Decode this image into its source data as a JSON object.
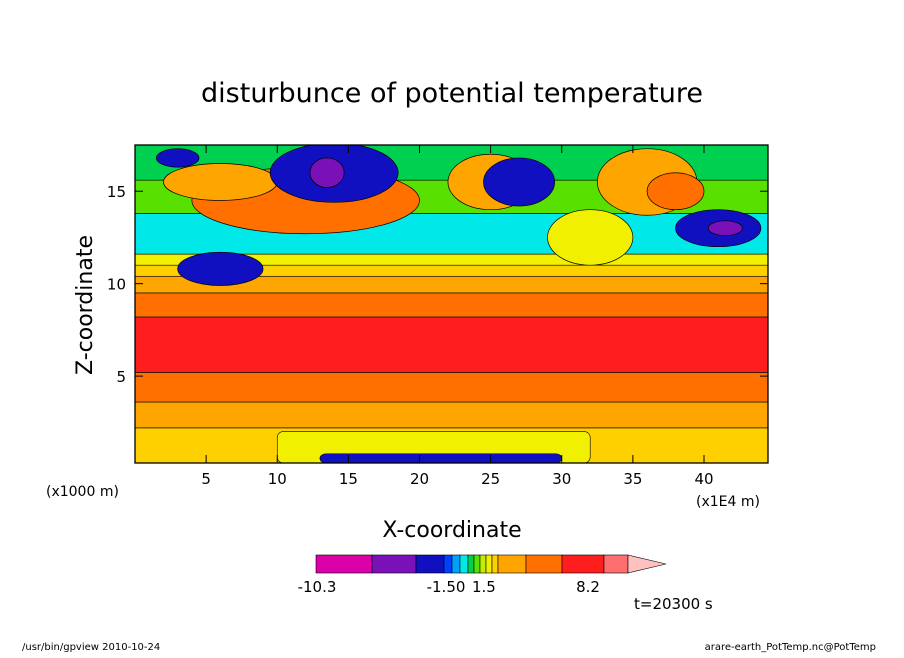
{
  "chart_data": {
    "type": "heatmap",
    "title": "disturbunce of potential temperature",
    "xlabel": "X-coordinate",
    "ylabel": "Z-coordinate",
    "x_unit": "(x1E4 m)",
    "y_unit": "(x1000 m)",
    "xlim": [
      0,
      44.5
    ],
    "ylim": [
      0.3,
      17.5
    ],
    "x_ticks": [
      5,
      10,
      15,
      20,
      25,
      30,
      35,
      40
    ],
    "y_ticks": [
      5,
      10,
      15
    ],
    "colorbar": {
      "labels": [
        "-10.3",
        "-1.50",
        "1.5",
        "8.2"
      ],
      "colors": [
        "#dc00a8",
        "#7a10b8",
        "#1010c0",
        "#0040ff",
        "#00a0ff",
        "#00e8e8",
        "#00d050",
        "#58e000",
        "#c0f000",
        "#f0f000",
        "#ffd000",
        "#ffa500",
        "#ff7000",
        "#ff1e1e",
        "#ff6f6f",
        "#ffc0c0"
      ]
    },
    "time_label": "t=20300 s",
    "bands": [
      {
        "z": [
          0.3,
          0.8
        ],
        "color": "#1010c0",
        "x": [
          13,
          30
        ]
      },
      {
        "z": [
          0.3,
          2.0
        ],
        "color": "#f0f000",
        "x": [
          10,
          32
        ]
      },
      {
        "z": [
          0.3,
          2.2
        ],
        "color": "#ffd000"
      },
      {
        "z": [
          2.2,
          3.6
        ],
        "color": "#ffa500"
      },
      {
        "z": [
          3.6,
          5.2
        ],
        "color": "#ff7000"
      },
      {
        "z": [
          5.2,
          8.2
        ],
        "color": "#ff1e1e"
      },
      {
        "z": [
          8.2,
          9.5
        ],
        "color": "#ff7000"
      },
      {
        "z": [
          9.5,
          10.4
        ],
        "color": "#ffa500"
      },
      {
        "z": [
          10.4,
          11.0
        ],
        "color": "#ffd000"
      },
      {
        "z": [
          11.0,
          11.6
        ],
        "color": "#f0f000"
      },
      {
        "z": [
          11.6,
          13.8
        ],
        "color": "#00e8e8"
      },
      {
        "z": [
          13.8,
          15.6
        ],
        "color": "#58e000"
      },
      {
        "z": [
          15.6,
          17.5
        ],
        "color": "#00d050"
      }
    ],
    "blobs": [
      {
        "x": 12,
        "z": 14.5,
        "rx": 8,
        "ry": 1.8,
        "color": "#ff7000"
      },
      {
        "x": 6,
        "z": 15.5,
        "rx": 4,
        "ry": 1.0,
        "color": "#ffa500"
      },
      {
        "x": 14,
        "z": 16.0,
        "rx": 4.5,
        "ry": 1.6,
        "color": "#1010c0"
      },
      {
        "x": 13.5,
        "z": 16.0,
        "rx": 1.2,
        "ry": 0.8,
        "color": "#7a10b8"
      },
      {
        "x": 3,
        "z": 16.8,
        "rx": 1.5,
        "ry": 0.5,
        "color": "#1010c0"
      },
      {
        "x": 25,
        "z": 15.5,
        "rx": 3,
        "ry": 1.5,
        "color": "#ffa500"
      },
      {
        "x": 27,
        "z": 15.5,
        "rx": 2.5,
        "ry": 1.3,
        "color": "#1010c0"
      },
      {
        "x": 36,
        "z": 15.5,
        "rx": 3.5,
        "ry": 1.8,
        "color": "#ffa500"
      },
      {
        "x": 38,
        "z": 15.0,
        "rx": 2,
        "ry": 1.0,
        "color": "#ff7000"
      },
      {
        "x": 41,
        "z": 13.0,
        "rx": 3,
        "ry": 1.0,
        "color": "#1010c0"
      },
      {
        "x": 41.5,
        "z": 13.0,
        "rx": 1.2,
        "ry": 0.4,
        "color": "#7a10b8"
      },
      {
        "x": 32,
        "z": 12.5,
        "rx": 3,
        "ry": 1.5,
        "color": "#f0f000"
      },
      {
        "x": 6,
        "z": 10.8,
        "rx": 3,
        "ry": 0.9,
        "color": "#1010c0"
      }
    ]
  },
  "footer": {
    "left": "/usr/bin/gpview  2010-10-24",
    "right": "arare-earth_PotTemp.nc@PotTemp"
  }
}
